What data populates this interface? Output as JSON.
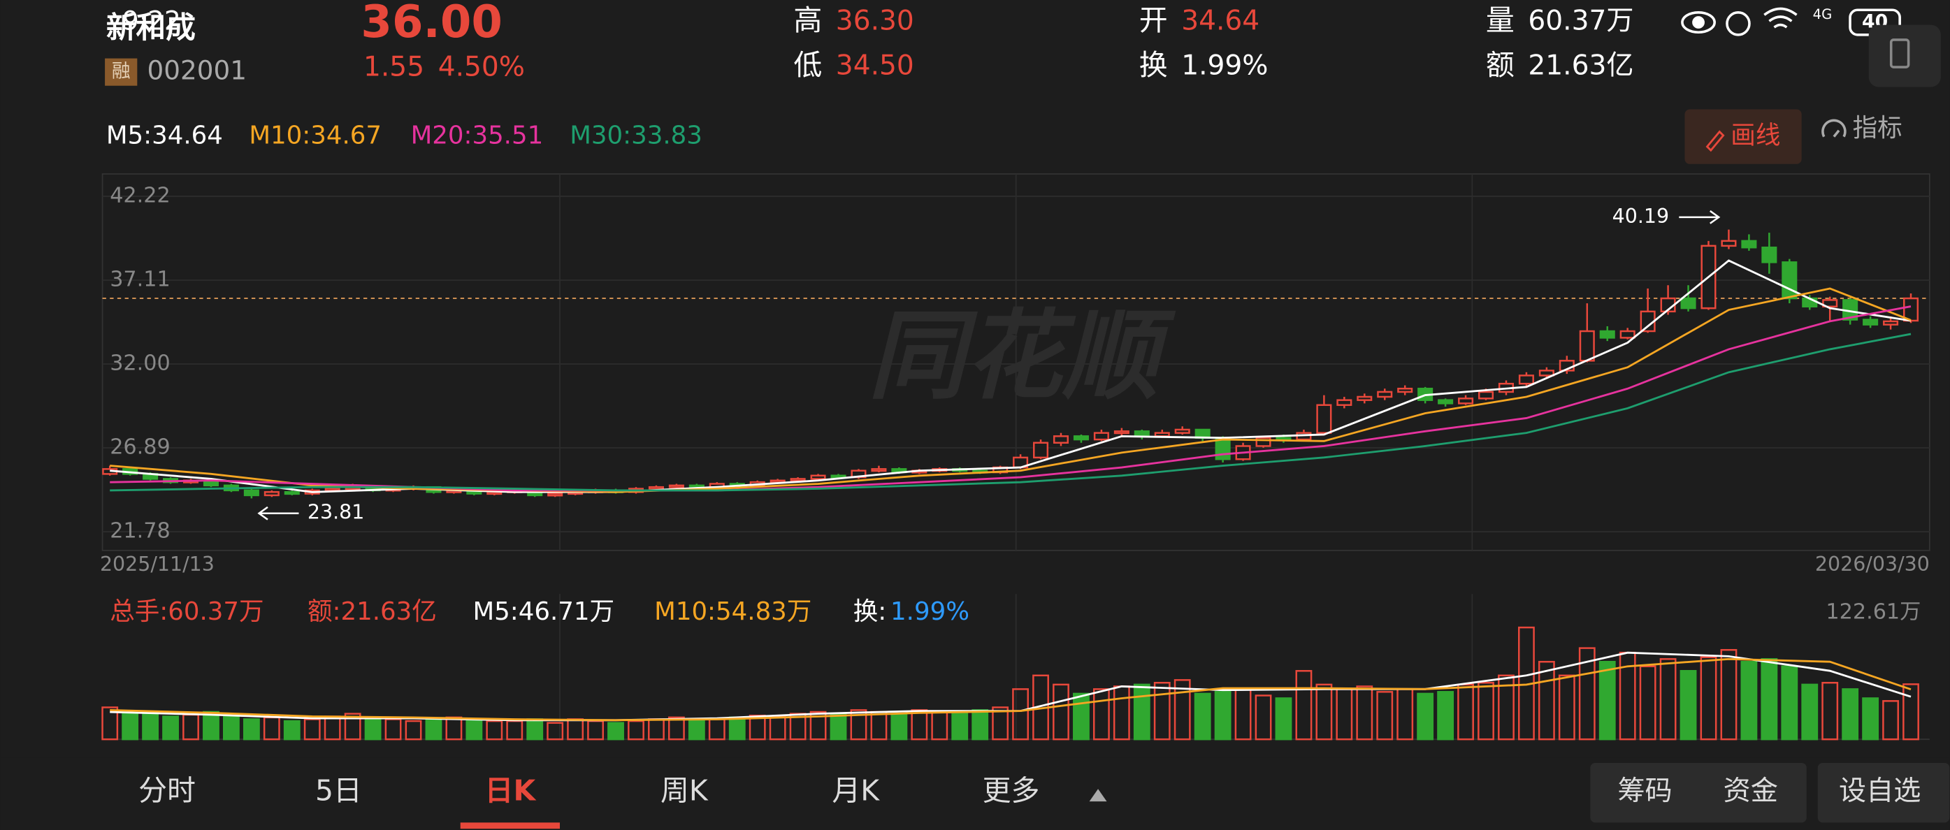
{
  "status": {
    "time": "9:22",
    "network": "4G",
    "battery": "40"
  },
  "header": {
    "name": "新和成",
    "price": "36.00",
    "badge": "融",
    "code": "002001",
    "change": "1.55",
    "change_pct": "4.50%",
    "stats": [
      {
        "label": "高",
        "value": "36.30"
      },
      {
        "label": "低",
        "value": "34.50"
      },
      {
        "label": "开",
        "value": "34.64"
      },
      {
        "label": "换",
        "value": "1.99%"
      },
      {
        "label": "量",
        "value": "60.37万"
      },
      {
        "label": "额",
        "value": "21.63亿"
      }
    ]
  },
  "toolbar": {
    "draw": "画线",
    "indicator": "指标"
  },
  "watermark": "同花顺",
  "chart_data": {
    "type": "candlestick",
    "ma_legend": [
      {
        "text": "M5:34.64",
        "color": "#ffffff"
      },
      {
        "text": "M10:34.67",
        "color": "#f5a623"
      },
      {
        "text": "M20:35.51",
        "color": "#e6339e"
      },
      {
        "text": "M30:33.83",
        "color": "#1e9e6e"
      }
    ],
    "up_color": "#e8483b",
    "down_color": "#30a830",
    "ylim": [
      20.64,
      43.58
    ],
    "yticks": [
      42.22,
      37.11,
      {
        "value": 32,
        "label": "32.00"
      },
      26.89,
      21.78
    ],
    "x_start": "2025/11/13",
    "x_end": "2026/03/30",
    "high_label": 40.19,
    "low_label": 23.81,
    "ohlc": [
      [
        25.3,
        25.8,
        25.2,
        25.6
      ],
      [
        25.6,
        25.7,
        25.2,
        25.3
      ],
      [
        25.3,
        25.4,
        24.9,
        25.0
      ],
      [
        25.0,
        25.1,
        24.7,
        24.8
      ],
      [
        24.8,
        25.0,
        24.7,
        24.9
      ],
      [
        24.9,
        24.9,
        24.5,
        24.6
      ],
      [
        24.6,
        24.7,
        24.2,
        24.3
      ],
      [
        24.3,
        24.4,
        23.81,
        24.0
      ],
      [
        24.0,
        24.3,
        23.9,
        24.2
      ],
      [
        24.2,
        24.3,
        24.0,
        24.1
      ],
      [
        24.1,
        24.4,
        24.0,
        24.3
      ],
      [
        24.3,
        24.6,
        24.2,
        24.4
      ],
      [
        24.4,
        24.7,
        24.3,
        24.5
      ],
      [
        24.5,
        24.6,
        24.2,
        24.3
      ],
      [
        24.3,
        24.5,
        24.2,
        24.4
      ],
      [
        24.4,
        24.6,
        24.3,
        24.5
      ],
      [
        24.5,
        24.5,
        24.1,
        24.2
      ],
      [
        24.2,
        24.4,
        24.1,
        24.3
      ],
      [
        24.3,
        24.3,
        24.0,
        24.1
      ],
      [
        24.1,
        24.3,
        24.0,
        24.2
      ],
      [
        24.2,
        24.4,
        24.1,
        24.3
      ],
      [
        24.3,
        24.3,
        23.9,
        24.0
      ],
      [
        24.0,
        24.2,
        23.9,
        24.1
      ],
      [
        24.1,
        24.3,
        24.0,
        24.2
      ],
      [
        24.2,
        24.4,
        24.1,
        24.3
      ],
      [
        24.3,
        24.4,
        24.1,
        24.2
      ],
      [
        24.2,
        24.5,
        24.1,
        24.4
      ],
      [
        24.4,
        24.6,
        24.3,
        24.5
      ],
      [
        24.5,
        24.7,
        24.4,
        24.6
      ],
      [
        24.6,
        24.7,
        24.4,
        24.5
      ],
      [
        24.5,
        24.8,
        24.4,
        24.7
      ],
      [
        24.7,
        24.8,
        24.5,
        24.6
      ],
      [
        24.6,
        24.9,
        24.5,
        24.8
      ],
      [
        24.8,
        25.0,
        24.7,
        24.9
      ],
      [
        24.9,
        25.1,
        24.8,
        25.0
      ],
      [
        25.0,
        25.3,
        24.9,
        25.2
      ],
      [
        25.2,
        25.3,
        25.0,
        25.1
      ],
      [
        25.1,
        25.6,
        25.0,
        25.5
      ],
      [
        25.5,
        25.8,
        25.4,
        25.6
      ],
      [
        25.6,
        25.7,
        25.3,
        25.4
      ],
      [
        25.4,
        25.6,
        25.3,
        25.5
      ],
      [
        25.5,
        25.7,
        25.4,
        25.6
      ],
      [
        25.6,
        25.7,
        25.4,
        25.5
      ],
      [
        25.5,
        25.6,
        25.3,
        25.4
      ],
      [
        25.4,
        25.8,
        25.3,
        25.7
      ],
      [
        25.7,
        26.5,
        25.6,
        26.3
      ],
      [
        26.3,
        27.4,
        26.2,
        27.2
      ],
      [
        27.2,
        27.8,
        27.0,
        27.6
      ],
      [
        27.6,
        27.7,
        27.2,
        27.4
      ],
      [
        27.4,
        28.0,
        27.3,
        27.8
      ],
      [
        27.8,
        28.1,
        27.6,
        27.9
      ],
      [
        27.9,
        28.0,
        27.4,
        27.6
      ],
      [
        27.6,
        28.0,
        27.5,
        27.8
      ],
      [
        27.8,
        28.2,
        27.7,
        28.0
      ],
      [
        28.0,
        28.0,
        27.3,
        27.5
      ],
      [
        27.5,
        27.6,
        26.0,
        26.2
      ],
      [
        26.2,
        27.2,
        26.1,
        27.0
      ],
      [
        27.0,
        27.6,
        26.9,
        27.5
      ],
      [
        27.5,
        27.7,
        27.2,
        27.4
      ],
      [
        27.4,
        28.0,
        27.3,
        27.8
      ],
      [
        27.8,
        30.1,
        27.7,
        29.5
      ],
      [
        29.5,
        30.0,
        29.3,
        29.8
      ],
      [
        29.8,
        30.2,
        29.6,
        30.0
      ],
      [
        30.0,
        30.5,
        29.8,
        30.3
      ],
      [
        30.3,
        30.7,
        30.1,
        30.5
      ],
      [
        30.5,
        30.6,
        29.6,
        29.8
      ],
      [
        29.8,
        29.9,
        29.4,
        29.6
      ],
      [
        29.6,
        30.1,
        29.5,
        29.9
      ],
      [
        29.9,
        30.5,
        29.8,
        30.3
      ],
      [
        30.3,
        31.0,
        30.1,
        30.8
      ],
      [
        30.8,
        31.5,
        30.6,
        31.3
      ],
      [
        31.3,
        31.8,
        31.1,
        31.6
      ],
      [
        31.6,
        32.5,
        31.4,
        32.2
      ],
      [
        32.2,
        35.7,
        32.1,
        34.0
      ],
      [
        34.0,
        34.3,
        33.4,
        33.6
      ],
      [
        33.6,
        34.2,
        33.5,
        34.0
      ],
      [
        34.0,
        36.6,
        33.9,
        35.2
      ],
      [
        35.2,
        36.8,
        35.0,
        36.0
      ],
      [
        36.0,
        36.8,
        35.2,
        35.4
      ],
      [
        35.4,
        39.5,
        35.3,
        39.2
      ],
      [
        39.2,
        40.19,
        39.0,
        39.5
      ],
      [
        39.5,
        39.9,
        38.9,
        39.1
      ],
      [
        39.1,
        40.0,
        37.5,
        38.2
      ],
      [
        38.2,
        38.4,
        35.7,
        36.0
      ],
      [
        36.0,
        36.2,
        35.3,
        35.5
      ],
      [
        35.5,
        36.1,
        34.6,
        35.9
      ],
      [
        35.9,
        36.0,
        34.4,
        34.7
      ],
      [
        34.7,
        34.9,
        34.2,
        34.4
      ],
      [
        34.4,
        34.9,
        34.1,
        34.6
      ],
      [
        34.64,
        36.3,
        34.5,
        36.0
      ]
    ],
    "ma_x": [
      0,
      5,
      10,
      15,
      20,
      25,
      30,
      35,
      40,
      45,
      50,
      55,
      60,
      65,
      70,
      75,
      80,
      85,
      89
    ],
    "ma": [
      {
        "color": "#ffffff",
        "values": [
          25.5,
          25.0,
          24.2,
          24.4,
          24.2,
          24.2,
          24.5,
          24.9,
          25.5,
          25.7,
          27.6,
          27.5,
          27.7,
          30.1,
          30.6,
          33.3,
          38.3,
          35.4,
          34.64
        ]
      },
      {
        "color": "#f5a623",
        "values": [
          25.8,
          25.3,
          24.6,
          24.4,
          24.3,
          24.2,
          24.4,
          24.7,
          25.2,
          25.5,
          26.6,
          27.4,
          27.3,
          29.0,
          30.0,
          31.8,
          35.3,
          36.6,
          34.67
        ]
      },
      {
        "color": "#e6339e",
        "values": [
          24.8,
          24.9,
          24.7,
          24.5,
          24.3,
          24.3,
          24.3,
          24.5,
          24.8,
          25.1,
          25.7,
          26.5,
          27.0,
          27.9,
          28.7,
          30.5,
          32.9,
          34.6,
          35.51
        ]
      },
      {
        "color": "#1e9e6e",
        "values": [
          24.3,
          24.4,
          24.5,
          24.5,
          24.4,
          24.3,
          24.3,
          24.4,
          24.6,
          24.8,
          25.2,
          25.8,
          26.3,
          27.0,
          27.8,
          29.3,
          31.5,
          32.9,
          33.83
        ]
      }
    ],
    "volume_legend": [
      {
        "text": "总手:60.37万",
        "color": "#e8483b"
      },
      {
        "text": "额:21.63亿",
        "color": "#e8483b"
      },
      {
        "text": "M5:46.71万",
        "color": "#ffffff"
      },
      {
        "text": "M10:54.83万",
        "color": "#f5a623"
      },
      {
        "text": "换:",
        "color": "#ffffff"
      },
      {
        "text": "1.99%",
        "color": "#2e9bff"
      }
    ],
    "vlim": [
      0,
      122.61
    ],
    "vticks": [
      {
        "value": 122.61,
        "label": "122.61万"
      }
    ],
    "volume": [
      35,
      28,
      30,
      25,
      27,
      30,
      25,
      22,
      24,
      20,
      22,
      25,
      28,
      24,
      22,
      20,
      22,
      24,
      22,
      20,
      20,
      22,
      18,
      22,
      20,
      18,
      20,
      22,
      24,
      20,
      22,
      24,
      26,
      25,
      28,
      30,
      28,
      32,
      30,
      28,
      32,
      30,
      30,
      32,
      35,
      55,
      70,
      60,
      50,
      55,
      58,
      60,
      62,
      65,
      50,
      52,
      55,
      48,
      45,
      75,
      60,
      55,
      58,
      52,
      55,
      50,
      52,
      60,
      62,
      70,
      122.61,
      85,
      70,
      100,
      85,
      95,
      80,
      88,
      75,
      90,
      98,
      85,
      88,
      80,
      60,
      62,
      55,
      45,
      42,
      60.37
    ],
    "vma": [
      {
        "color": "#ffffff",
        "values": [
          30,
          27,
          23,
          23,
          21,
          21,
          23,
          28,
          31,
          31,
          58,
          54,
          55,
          55,
          70,
          95,
          91,
          75,
          46.71
        ]
      },
      {
        "color": "#f5a623",
        "values": [
          32,
          29,
          25,
          24,
          22,
          21,
          22,
          25,
          29,
          31,
          45,
          56,
          56,
          55,
          60,
          80,
          88,
          85,
          54.83
        ]
      }
    ]
  },
  "tabs": [
    "分时",
    "5日",
    "日K",
    "周K",
    "月K",
    "更多"
  ],
  "active_tab": 2,
  "actions": [
    "筹码",
    "资金",
    "设自选"
  ]
}
